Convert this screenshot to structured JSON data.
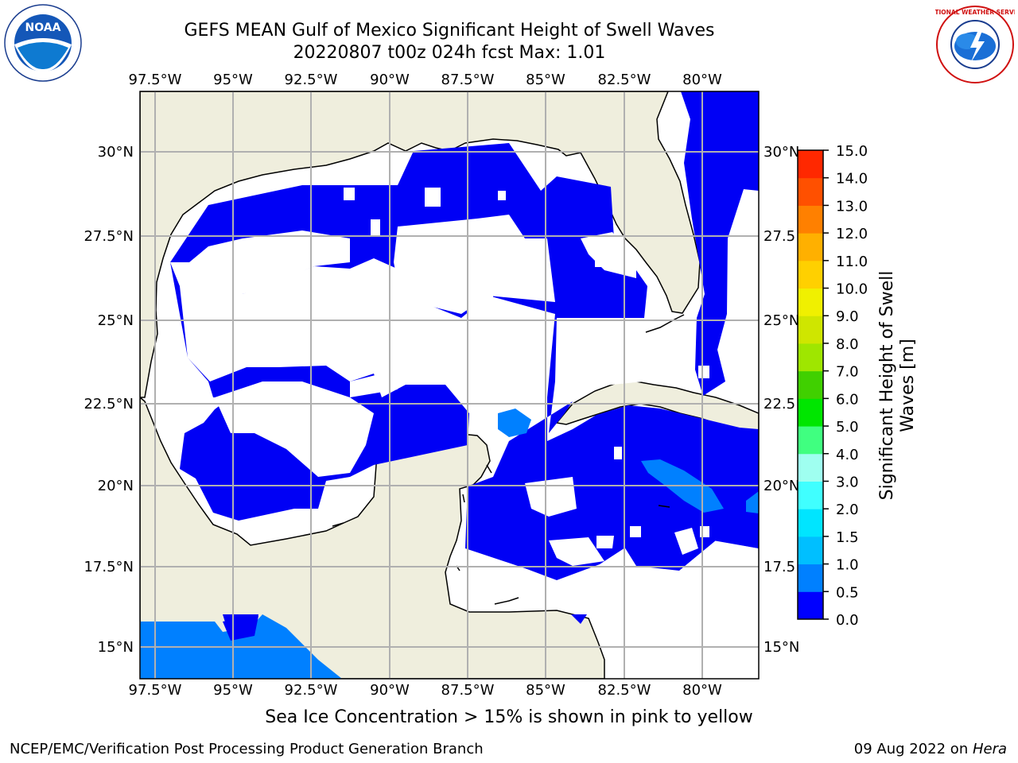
{
  "title": {
    "line1": "GEFS MEAN Gulf of Mexico Significant Height of Swell Waves",
    "line2": "20220807 t00z 024h fcst   Max: 1.01"
  },
  "map": {
    "lon_ticks": [
      "97.5°W",
      "95°W",
      "92.5°W",
      "90°W",
      "87.5°W",
      "85°W",
      "82.5°W",
      "80°W"
    ],
    "lat_ticks_left": [
      "30°N",
      "27.5°N",
      "25°N",
      "22.5°N",
      "20°N",
      "17.5°N",
      "15°N"
    ],
    "lat_ticks_right": [
      "30°N",
      "27.5",
      "25°N",
      "22.5",
      "20°N",
      "17.5",
      "15°N"
    ],
    "colors": {
      "land": "#efeedd",
      "water_low": "#0000f5",
      "water_mid": "#0080ff",
      "grid": "#b0b0b0"
    }
  },
  "colorbar": {
    "label_line1": "Significant Height of Swell",
    "label_line2": "Waves [m]",
    "ticks": [
      "0.0",
      "0.5",
      "1.0",
      "1.5",
      "2.0",
      "3.0",
      "4.0",
      "5.0",
      "6.0",
      "7.0",
      "8.0",
      "9.0",
      "10.0",
      "11.0",
      "12.0",
      "13.0",
      "14.0",
      "15.0"
    ],
    "colors": [
      "#0000ff",
      "#0080ff",
      "#00bfff",
      "#00e5ff",
      "#40ffff",
      "#9ffff0",
      "#40ff80",
      "#00e600",
      "#40d000",
      "#9fe600",
      "#cfe600",
      "#f0f000",
      "#ffd000",
      "#ffb000",
      "#ff8000",
      "#ff5000",
      "#ff2800",
      "#ff0000"
    ]
  },
  "caption": "Sea Ice Concentration > 15% is shown in pink to yellow",
  "footer": {
    "left": "NCEP/EMC/Verification Post Processing Product Generation Branch",
    "right_date": "09 Aug 2022 on ",
    "right_host": "Hera"
  },
  "logos": {
    "left_text": "NOAA",
    "right_text": "NATIONAL WEATHER SERVICE"
  }
}
